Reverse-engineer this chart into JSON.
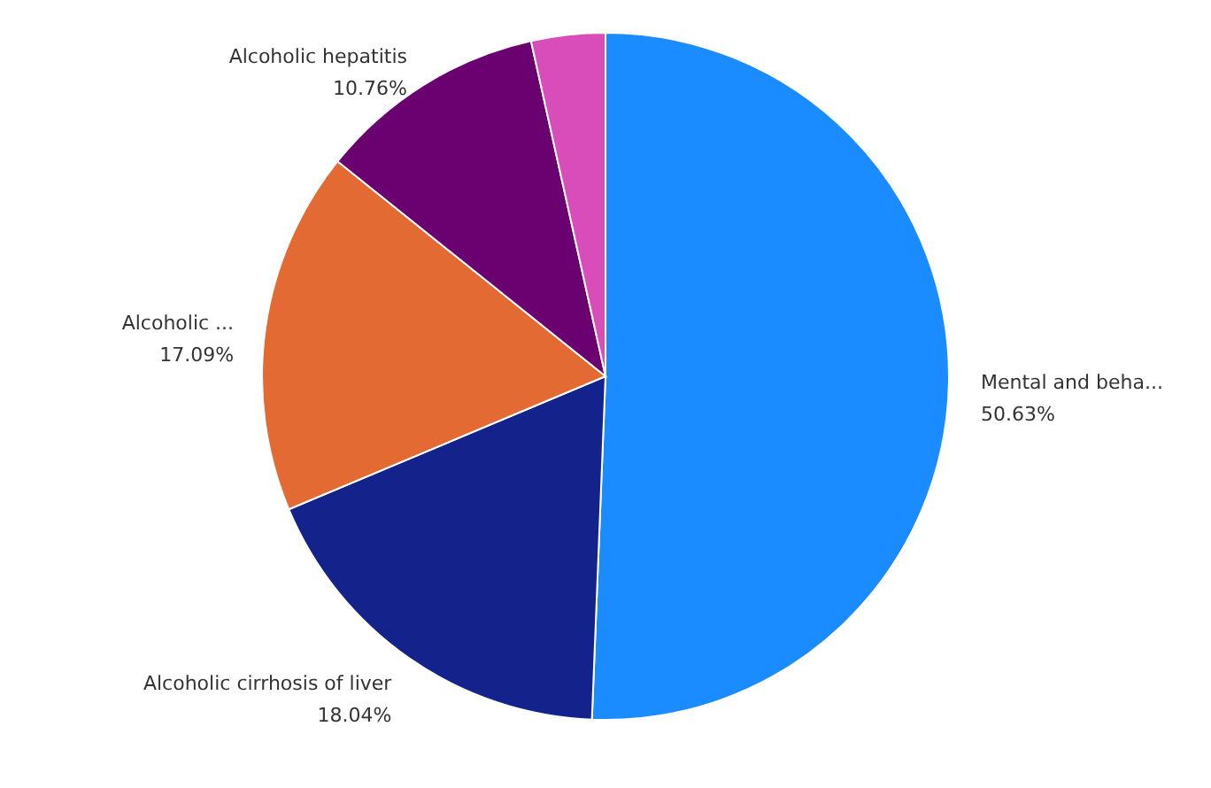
{
  "chart_data": {
    "type": "pie",
    "categories": [
      "Mental and beha...",
      "Alcoholic cirrhosis of liver",
      "Alcoholic ...",
      "Alcoholic hepatitis",
      null
    ],
    "values": [
      50.63,
      18.04,
      17.09,
      10.76,
      3.48
    ],
    "colors": [
      "#1a8cff",
      "#14238c",
      "#e36b33",
      "#6b0070",
      "#d94dbb"
    ],
    "value_labels": [
      "50.63%",
      "18.04%",
      "17.09%",
      "10.76%",
      null
    ]
  }
}
